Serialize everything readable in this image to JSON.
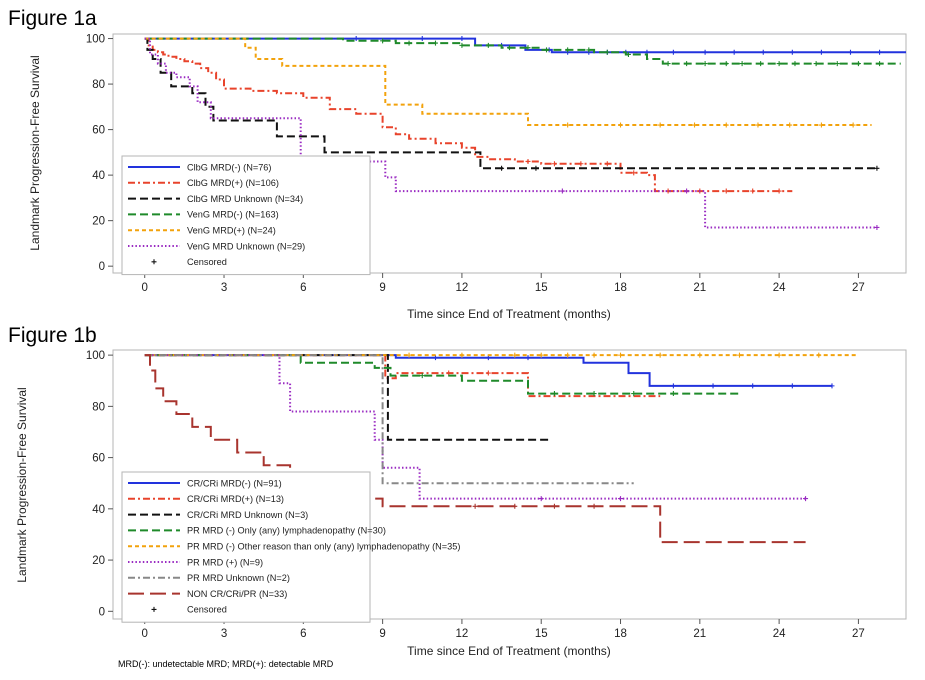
{
  "footnote": "MRD(-): undetectable MRD; MRD(+): detectable MRD",
  "chart_data": [
    {
      "type": "line",
      "subtype": "kaplan-meier step curve",
      "title": "Figure 1a",
      "xlabel": "Time since End of Treatment (months)",
      "ylabel": "Landmark Progression-Free Survival",
      "xlim": [
        -1.2,
        28.8
      ],
      "ylim": [
        -3,
        102
      ],
      "xticks": [
        0,
        3,
        6,
        9,
        12,
        15,
        18,
        21,
        24,
        27
      ],
      "yticks": [
        0,
        20,
        40,
        60,
        80,
        100
      ],
      "legend_position": "bottom-left",
      "censored_label": "Censored",
      "series": [
        {
          "name": "ClbG MRD(-) (N=76)",
          "color": "#2233dd",
          "dash": "solid",
          "x": [
            0,
            12.5,
            14.4,
            15.4,
            28.8
          ],
          "y": [
            100,
            97,
            95,
            94,
            94
          ],
          "censor_x": [
            8,
            10.5,
            12,
            13.5,
            15.3,
            16,
            16.8,
            17.5,
            18.2,
            19,
            20,
            21.2,
            22.3,
            23.4,
            24.5,
            25.6,
            26.7,
            27.8
          ]
        },
        {
          "name": "ClbG MRD(+) (N=106)",
          "color": "#e8432b",
          "dash": "dashdot",
          "x": [
            0,
            0.15,
            0.3,
            0.5,
            0.7,
            0.9,
            1.2,
            1.5,
            1.8,
            2.1,
            2.4,
            2.7,
            3,
            4,
            5,
            6,
            7,
            8,
            9,
            9.5,
            10,
            11,
            12,
            12.5,
            13,
            14,
            15,
            16,
            17,
            18,
            19,
            19.3,
            24.5
          ],
          "y": [
            100,
            97,
            95,
            94,
            93,
            92,
            91,
            90,
            89,
            87,
            85,
            82,
            78,
            77,
            76,
            74,
            69,
            67,
            61,
            58,
            56,
            54,
            52,
            48,
            47,
            46,
            45,
            45,
            45,
            41,
            40,
            33,
            33
          ],
          "censor_x": [
            14.5,
            15.5,
            16.5,
            17.5,
            18.5,
            19.8,
            21,
            22,
            23,
            24
          ]
        },
        {
          "name": "ClbG MRD Unknown (N=34)",
          "color": "#111111",
          "dash": "dash",
          "x": [
            0,
            0.1,
            0.3,
            0.6,
            1,
            1.8,
            2.3,
            2.6,
            5,
            6.8,
            12.7,
            27.7
          ],
          "y": [
            100,
            95,
            91,
            85,
            79,
            76,
            70,
            64,
            57,
            50,
            43,
            43
          ],
          "censor_x": [
            13.5,
            14.8,
            27.7
          ]
        },
        {
          "name": "VenG MRD(-) (N=163)",
          "color": "#1f8a2a",
          "dash": "dash",
          "x": [
            0,
            7.5,
            9.5,
            11,
            12,
            13.5,
            15,
            17,
            18.2,
            19,
            19.6,
            28.6
          ],
          "y": [
            100,
            99,
            98,
            98,
            97,
            96,
            95,
            94,
            93,
            91,
            89,
            89
          ],
          "censor_x": [
            9,
            10,
            11,
            12,
            13,
            13.8,
            14.5,
            15.2,
            16,
            16.8,
            17.5,
            18.3,
            19.8,
            20.5,
            21.2,
            22,
            22.6,
            23.3,
            24,
            24.6,
            25.4,
            26.2,
            27,
            27.8
          ]
        },
        {
          "name": "VenG MRD(+) (N=24)",
          "color": "#f2a20c",
          "dash": "shortdash",
          "x": [
            0,
            3.8,
            4.2,
            5.2,
            5.9,
            9.1,
            9.4,
            10.5,
            14.5,
            27.5
          ],
          "y": [
            100,
            96,
            91,
            88,
            88,
            71,
            71,
            67,
            62,
            62
          ],
          "censor_x": [
            16,
            18,
            19.5,
            20.8,
            22,
            23.2,
            24.4,
            25.6,
            26.8
          ]
        },
        {
          "name": "VenG MRD Unknown (N=29)",
          "color": "#9a2bc2",
          "dash": "dot",
          "x": [
            0,
            0.2,
            0.5,
            0.8,
            1.2,
            1.7,
            2,
            2.5,
            5.9,
            9.1,
            9.5,
            20.8,
            21.2,
            27.7
          ],
          "y": [
            100,
            93,
            89,
            85,
            83,
            79,
            72,
            65,
            46,
            39,
            33,
            33,
            17,
            17
          ],
          "censor_x": [
            15.8,
            20.5,
            27.7
          ]
        }
      ]
    },
    {
      "type": "line",
      "subtype": "kaplan-meier step curve",
      "title": "Figure 1b",
      "xlabel": "Time since End of Treatment (months)",
      "ylabel": "Landmark Progression-Free Survival",
      "xlim": [
        -1.2,
        28.8
      ],
      "ylim": [
        -3,
        102
      ],
      "xticks": [
        0,
        3,
        6,
        9,
        12,
        15,
        18,
        21,
        24,
        27
      ],
      "yticks": [
        0,
        20,
        40,
        60,
        80,
        100
      ],
      "legend_position": "bottom-left",
      "censored_label": "Censored",
      "series": [
        {
          "name": "CR/CRi MRD(-) (N=91)",
          "color": "#2233dd",
          "dash": "solid",
          "x": [
            0,
            9.5,
            15.8,
            16.6,
            18.3,
            19.1,
            26
          ],
          "y": [
            100,
            99,
            99,
            97,
            93,
            88,
            88
          ],
          "censor_x": [
            11,
            13,
            14.5,
            20,
            21.5,
            23,
            24.5,
            26
          ]
        },
        {
          "name": "CR/CRi MRD(+) (N=13)",
          "color": "#e8432b",
          "dash": "dashdot",
          "x": [
            0,
            9.1,
            9.5,
            14.5,
            19.5
          ],
          "y": [
            100,
            91,
            93,
            84,
            84
          ],
          "censor_x": [
            11.5,
            13
          ]
        },
        {
          "name": "CR/CRi MRD Unknown (N=3)",
          "color": "#111111",
          "dash": "dash",
          "x": [
            0,
            9.2,
            15.4
          ],
          "y": [
            100,
            67,
            67
          ],
          "censor_x": []
        },
        {
          "name": "PR MRD (-) Only (any) lymphadenopathy (N=30)",
          "color": "#1f8a2a",
          "dash": "dash",
          "x": [
            0,
            5.9,
            8.7,
            9.3,
            12,
            14.5,
            22.5
          ],
          "y": [
            100,
            97,
            95,
            92,
            90,
            85,
            85
          ],
          "censor_x": [
            10.5,
            15.5,
            17,
            18.5,
            20
          ]
        },
        {
          "name": "PR MRD (-) Other reason than only (any) lymphadenopathy (N=35)",
          "color": "#f2a20c",
          "dash": "shortdash",
          "x": [
            0,
            27
          ],
          "y": [
            100,
            100
          ],
          "censor_x": [
            10,
            12,
            14,
            15,
            16,
            17,
            18,
            19.5,
            21,
            22.5,
            24,
            25.5
          ]
        },
        {
          "name": "PR MRD (+) (N=9)",
          "color": "#9a2bc2",
          "dash": "dot",
          "x": [
            0,
            5.1,
            5.5,
            6.5,
            8.7,
            9,
            9.7,
            10.4,
            25
          ],
          "y": [
            100,
            89,
            78,
            78,
            67,
            56,
            56,
            44,
            44
          ],
          "censor_x": [
            15,
            18,
            25
          ]
        },
        {
          "name": "PR MRD Unknown (N=2)",
          "color": "#888888",
          "dash": "dashdot",
          "x": [
            0,
            8.8,
            9,
            18.5
          ],
          "y": [
            100,
            100,
            50,
            50
          ],
          "censor_x": []
        },
        {
          "name": "NON CR/CRi/PR (N=33)",
          "color": "#a8342e",
          "dash": "longdash",
          "x": [
            0,
            0.2,
            0.4,
            0.7,
            1.2,
            1.8,
            2.5,
            3.5,
            4.5,
            5.5,
            6.5,
            8.5,
            9,
            19.4,
            19.5,
            25
          ],
          "y": [
            100,
            94,
            87,
            82,
            77,
            72,
            67,
            62,
            57,
            52,
            47,
            44,
            41,
            41,
            27,
            27
          ],
          "censor_x": [
            12.5,
            14,
            15.5,
            17
          ]
        }
      ]
    }
  ]
}
